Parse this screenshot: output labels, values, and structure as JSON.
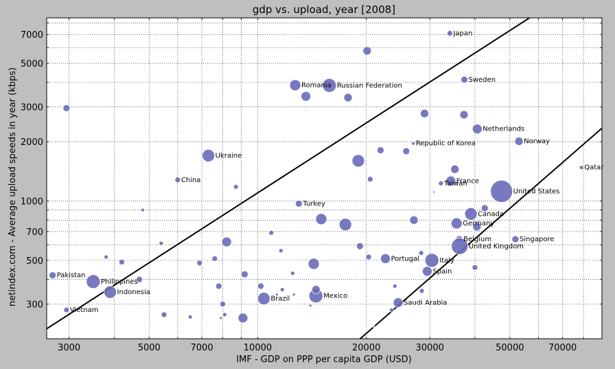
{
  "chart_data": {
    "type": "scatter",
    "title": "gdp vs. upload, year [2008]",
    "xlabel": "IMF - GDP on PPP per capita GDP (USD)",
    "ylabel": "netindex.com - Average upload speeds in year (kbps)",
    "xscale": "log",
    "yscale": "log",
    "xlim": [
      2600,
      90000
    ],
    "ylim": [
      200,
      8500
    ],
    "grid": true,
    "xticks": [
      3000,
      5000,
      7000,
      10000,
      20000,
      30000,
      50000,
      70000
    ],
    "xtick_labels": [
      "3000",
      "5000",
      "7000",
      "10000",
      "20000",
      "30000",
      "50000",
      "70000"
    ],
    "yticks": [
      300,
      500,
      700,
      1000,
      2000,
      3000,
      5000,
      7000
    ],
    "ytick_labels": [
      "300",
      "500",
      "700",
      "1000",
      "2000",
      "3000",
      "5000",
      "7000"
    ],
    "marker_color": "#6a6ab8",
    "reference_lines": [
      {
        "x": [
          2000,
          100000
        ],
        "y": [
          165,
          16600
        ]
      },
      {
        "x": [
          18000,
          100000
        ],
        "y": [
          180,
          2770
        ]
      }
    ],
    "points": [
      {
        "label": "Japan",
        "x": 34100,
        "y": 7100,
        "s": 4
      },
      {
        "label": "Sweden",
        "x": 37400,
        "y": 4130,
        "s": 5
      },
      {
        "label": "Romania",
        "x": 12700,
        "y": 3870,
        "s": 8
      },
      {
        "label": "Russian Federation",
        "x": 15800,
        "y": 3860,
        "s": 10
      },
      {
        "label": "Netherlands",
        "x": 40600,
        "y": 2320,
        "s": 7
      },
      {
        "label": "Norway",
        "x": 53000,
        "y": 2010,
        "s": 6
      },
      {
        "label": "Republic of Korea",
        "x": 27000,
        "y": 1960,
        "s": 2.5
      },
      {
        "label": "Ukraine",
        "x": 7300,
        "y": 1700,
        "s": 9
      },
      {
        "label": "Qatar",
        "x": 79000,
        "y": 1480,
        "s": 3
      },
      {
        "label": "China",
        "x": 6000,
        "y": 1280,
        "s": 4
      },
      {
        "label": "France",
        "x": 34300,
        "y": 1265,
        "s": 7
      },
      {
        "label": "Taiwan",
        "x": 32200,
        "y": 1230,
        "s": 3.5
      },
      {
        "label": "United States",
        "x": 47400,
        "y": 1120,
        "s": 16
      },
      {
        "label": "Turkey",
        "x": 13000,
        "y": 970,
        "s": 5
      },
      {
        "label": "Canada",
        "x": 39000,
        "y": 860,
        "s": 9
      },
      {
        "label": "Germany",
        "x": 35600,
        "y": 770,
        "s": 8
      },
      {
        "label": "Belgium",
        "x": 36200,
        "y": 640,
        "s": 5
      },
      {
        "label": "Singapore",
        "x": 51800,
        "y": 640,
        "s": 5
      },
      {
        "label": "United Kingdom",
        "x": 36300,
        "y": 590,
        "s": 12
      },
      {
        "label": "Portugal",
        "x": 22600,
        "y": 510,
        "s": 7
      },
      {
        "label": "Italy",
        "x": 30400,
        "y": 500,
        "s": 10
      },
      {
        "label": "Spain",
        "x": 29500,
        "y": 440,
        "s": 7
      },
      {
        "label": "Pakistan",
        "x": 2700,
        "y": 420,
        "s": 5
      },
      {
        "label": "Philippines",
        "x": 3500,
        "y": 390,
        "s": 10
      },
      {
        "label": "Indonesia",
        "x": 3900,
        "y": 345,
        "s": 9
      },
      {
        "label": "Mexico",
        "x": 14500,
        "y": 330,
        "s": 10
      },
      {
        "label": "Brazil",
        "x": 10400,
        "y": 320,
        "s": 9
      },
      {
        "label": "Saudi Arabia",
        "x": 24500,
        "y": 305,
        "s": 7
      },
      {
        "label": "Vietnam",
        "x": 2950,
        "y": 280,
        "s": 4
      },
      {
        "x": 2950,
        "y": 2960,
        "s": 5
      },
      {
        "x": 20100,
        "y": 5780,
        "s": 6
      },
      {
        "x": 13600,
        "y": 3400,
        "s": 7
      },
      {
        "x": 17800,
        "y": 3350,
        "s": 6
      },
      {
        "x": 29000,
        "y": 2780,
        "s": 6
      },
      {
        "x": 37300,
        "y": 2740,
        "s": 6
      },
      {
        "x": 21900,
        "y": 1810,
        "s": 5
      },
      {
        "x": 25800,
        "y": 1790,
        "s": 5
      },
      {
        "x": 19000,
        "y": 1600,
        "s": 9
      },
      {
        "x": 35200,
        "y": 1450,
        "s": 6
      },
      {
        "x": 20500,
        "y": 1290,
        "s": 4
      },
      {
        "x": 8700,
        "y": 1180,
        "s": 3.5
      },
      {
        "x": 30800,
        "y": 1110,
        "s": 1.5
      },
      {
        "x": 42600,
        "y": 920,
        "s": 5
      },
      {
        "x": 4800,
        "y": 900,
        "s": 2.5
      },
      {
        "x": 15000,
        "y": 810,
        "s": 8
      },
      {
        "x": 17500,
        "y": 760,
        "s": 9
      },
      {
        "x": 27100,
        "y": 800,
        "s": 6
      },
      {
        "x": 10900,
        "y": 690,
        "s": 3.5
      },
      {
        "x": 40500,
        "y": 740,
        "s": 6
      },
      {
        "x": 8200,
        "y": 620,
        "s": 7
      },
      {
        "x": 5400,
        "y": 610,
        "s": 3
      },
      {
        "x": 19200,
        "y": 590,
        "s": 5
      },
      {
        "x": 11600,
        "y": 560,
        "s": 3
      },
      {
        "x": 28400,
        "y": 545,
        "s": 3.5
      },
      {
        "x": 20300,
        "y": 520,
        "s": 4
      },
      {
        "x": 3800,
        "y": 520,
        "s": 3
      },
      {
        "x": 7600,
        "y": 510,
        "s": 4
      },
      {
        "x": 4200,
        "y": 490,
        "s": 4
      },
      {
        "x": 6900,
        "y": 485,
        "s": 4
      },
      {
        "x": 14300,
        "y": 480,
        "s": 8
      },
      {
        "x": 40000,
        "y": 460,
        "s": 4
      },
      {
        "x": 9200,
        "y": 425,
        "s": 5
      },
      {
        "x": 12500,
        "y": 430,
        "s": 3
      },
      {
        "x": 4700,
        "y": 400,
        "s": 4.5
      },
      {
        "x": 7800,
        "y": 370,
        "s": 4.5
      },
      {
        "x": 10200,
        "y": 370,
        "s": 4.5
      },
      {
        "x": 14500,
        "y": 355,
        "s": 6
      },
      {
        "x": 11700,
        "y": 355,
        "s": 3
      },
      {
        "x": 24000,
        "y": 370,
        "s": 3
      },
      {
        "x": 28500,
        "y": 350,
        "s": 3.5
      },
      {
        "x": 12600,
        "y": 335,
        "s": 2
      },
      {
        "x": 11300,
        "y": 335,
        "s": 2
      },
      {
        "x": 8000,
        "y": 300,
        "s": 4
      },
      {
        "x": 14000,
        "y": 295,
        "s": 2
      },
      {
        "x": 5500,
        "y": 265,
        "s": 4
      },
      {
        "x": 8100,
        "y": 265,
        "s": 3
      },
      {
        "x": 9100,
        "y": 255,
        "s": 7
      },
      {
        "x": 6500,
        "y": 258,
        "s": 3
      },
      {
        "x": 7900,
        "y": 255,
        "s": 2
      },
      {
        "x": 23500,
        "y": 280,
        "s": 3
      },
      {
        "x": 21000,
        "y": 230,
        "s": 1.5
      }
    ]
  }
}
